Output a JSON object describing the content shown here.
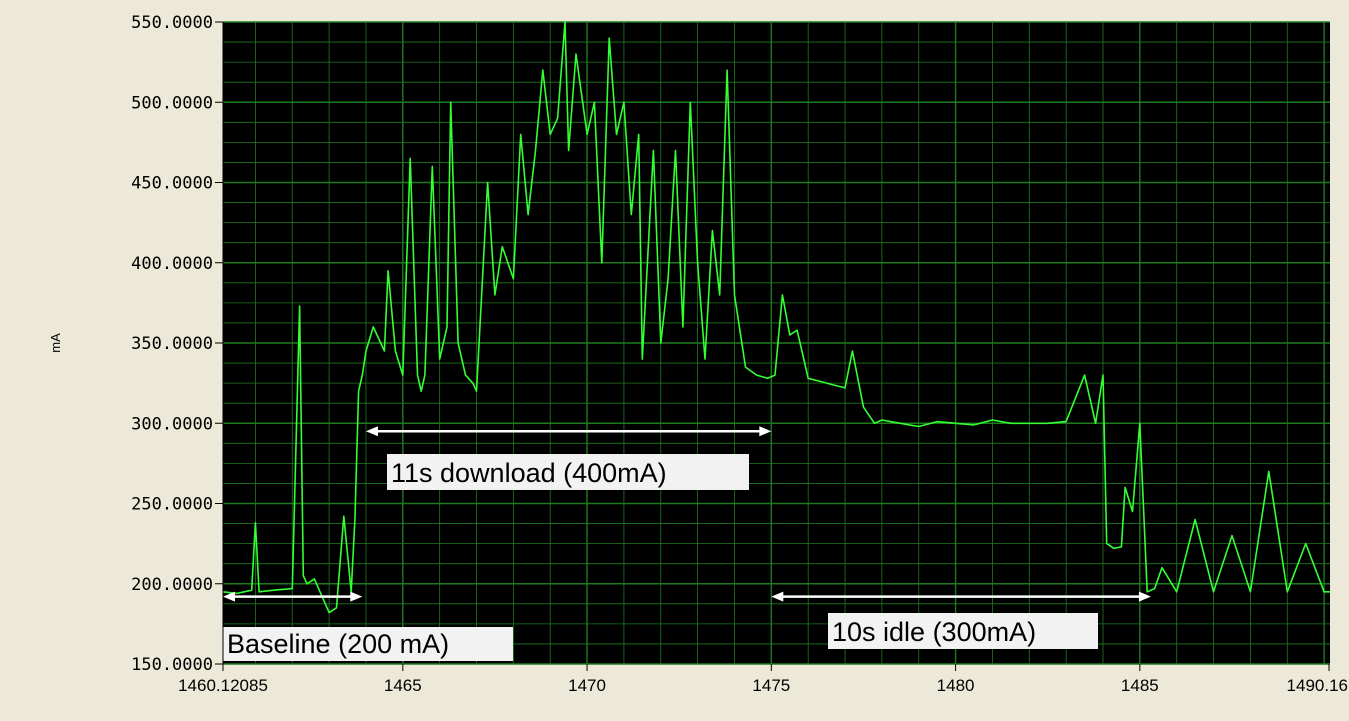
{
  "chart_data": {
    "type": "line",
    "ylabel": "mA",
    "xlabel": "",
    "title": "",
    "xlim": [
      1460.12085,
      1490.16
    ],
    "ylim": [
      150,
      550
    ],
    "yticks": [
      150,
      200,
      250,
      300,
      350,
      400,
      450,
      500,
      550
    ],
    "ytick_labels": [
      "150.0000",
      "200.0000",
      "250.0000",
      "300.0000",
      "350.0000",
      "400.0000",
      "450.0000",
      "500.0000",
      "550.0000"
    ],
    "xticks": [
      1460.12085,
      1465,
      1470,
      1475,
      1480,
      1485,
      1490.16
    ],
    "xtick_labels": [
      "1460.12085",
      "1465",
      "1470",
      "1475",
      "1480",
      "1485",
      "1490.16"
    ],
    "grid": true,
    "colors": {
      "background": "#000000",
      "grid": "#1f7a1f",
      "line": "#33ff33",
      "annotation_arrow": "#ffffff"
    },
    "series": [
      {
        "x": [
          1460.12,
          1460.5,
          1460.9,
          1461.0,
          1461.1,
          1461.5,
          1462.0,
          1462.2,
          1462.3,
          1462.4,
          1462.6,
          1463.0,
          1463.2,
          1463.4,
          1463.6,
          1463.7,
          1463.8,
          1463.9,
          1464.0,
          1464.2,
          1464.4,
          1464.5,
          1464.6,
          1464.8,
          1465.0,
          1465.2,
          1465.4,
          1465.5,
          1465.6,
          1465.8,
          1466.0,
          1466.2,
          1466.3,
          1466.5,
          1466.7,
          1466.9,
          1467.0,
          1467.3,
          1467.5,
          1467.7,
          1468.0,
          1468.2,
          1468.4,
          1468.6,
          1468.8,
          1469.0,
          1469.2,
          1469.4,
          1469.5,
          1469.7,
          1470.0,
          1470.2,
          1470.4,
          1470.6,
          1470.8,
          1471.0,
          1471.2,
          1471.4,
          1471.5,
          1471.8,
          1472.0,
          1472.2,
          1472.4,
          1472.6,
          1472.8,
          1473.0,
          1473.2,
          1473.4,
          1473.6,
          1473.8,
          1474.0,
          1474.3,
          1474.6,
          1474.9,
          1475.1,
          1475.3,
          1475.5,
          1475.7,
          1476.0,
          1476.5,
          1477.0,
          1477.2,
          1477.5,
          1477.8,
          1478.0,
          1478.5,
          1479.0,
          1479.5,
          1480.0,
          1480.5,
          1481.0,
          1481.5,
          1482.0,
          1482.5,
          1483.0,
          1483.5,
          1483.8,
          1484.0,
          1484.1,
          1484.3,
          1484.5,
          1484.6,
          1484.8,
          1485.0,
          1485.2,
          1485.4,
          1485.6,
          1486.0,
          1486.5,
          1487.0,
          1487.5,
          1488.0,
          1488.5,
          1489.0,
          1489.5,
          1490.0,
          1490.16
        ],
        "y": [
          195,
          194,
          196,
          238,
          195,
          196,
          197,
          373,
          205,
          200,
          203,
          182,
          185,
          242,
          195,
          240,
          320,
          330,
          345,
          360,
          350,
          345,
          395,
          345,
          330,
          465,
          330,
          320,
          330,
          460,
          340,
          360,
          500,
          350,
          330,
          325,
          320,
          450,
          380,
          410,
          390,
          480,
          430,
          470,
          520,
          480,
          490,
          550,
          470,
          530,
          480,
          500,
          400,
          540,
          480,
          500,
          430,
          480,
          340,
          470,
          350,
          390,
          470,
          360,
          500,
          400,
          340,
          420,
          380,
          520,
          380,
          335,
          330,
          328,
          330,
          380,
          355,
          358,
          328,
          325,
          322,
          345,
          310,
          300,
          302,
          300,
          298,
          301,
          300,
          299,
          302,
          300,
          300,
          300,
          301,
          330,
          300,
          330,
          225,
          222,
          223,
          260,
          245,
          300,
          195,
          197,
          210,
          195,
          240,
          195,
          230,
          195,
          270,
          195,
          225,
          195,
          195
        ]
      }
    ],
    "annotations": [
      {
        "text": "Baseline (200 mA)",
        "from": 1460.12,
        "to": 1463.9,
        "y": 192
      },
      {
        "text": "11s download (400mA)",
        "from": 1464.0,
        "to": 1475.0,
        "y": 295
      },
      {
        "text": "10s idle (300mA)",
        "from": 1475.0,
        "to": 1485.3,
        "y": 192
      }
    ]
  }
}
